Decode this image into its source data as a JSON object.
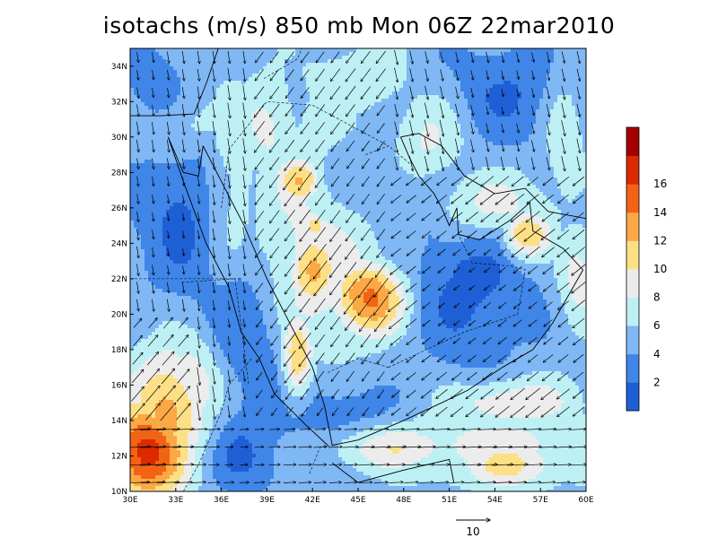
{
  "title": "isotachs (m/s) 850 mb Mon 06Z 22mar2010",
  "map": {
    "lon_range": [
      30,
      60
    ],
    "lat_range": [
      10,
      35
    ],
    "x_ticks": [
      "30E",
      "33E",
      "36E",
      "39E",
      "42E",
      "45E",
      "48E",
      "51E",
      "54E",
      "57E",
      "60E"
    ],
    "y_ticks": [
      "10N",
      "12N",
      "14N",
      "16N",
      "18N",
      "20N",
      "22N",
      "24N",
      "26N",
      "28N",
      "30N",
      "32N",
      "34N"
    ],
    "base_speed": 5,
    "hotspots": [
      {
        "lon": 31.0,
        "lat": 12.2,
        "speed": 17,
        "sx": 2.0,
        "sy": 2.0
      },
      {
        "lon": 32.5,
        "lat": 14.5,
        "speed": 13,
        "sx": 1.8,
        "sy": 2.5
      },
      {
        "lon": 34.0,
        "lat": 16.0,
        "speed": 10,
        "sx": 1.5,
        "sy": 2.0
      },
      {
        "lon": 41.3,
        "lat": 27.5,
        "speed": 13,
        "sx": 1.2,
        "sy": 1.0
      },
      {
        "lon": 42.2,
        "lat": 25.0,
        "speed": 12.5,
        "sx": 0.6,
        "sy": 0.6
      },
      {
        "lon": 42.0,
        "lat": 22.5,
        "speed": 13,
        "sx": 1.2,
        "sy": 1.6
      },
      {
        "lon": 45.8,
        "lat": 21.0,
        "speed": 15,
        "sx": 1.8,
        "sy": 1.6
      },
      {
        "lon": 41.0,
        "lat": 17.5,
        "speed": 13,
        "sx": 0.8,
        "sy": 1.8
      },
      {
        "lon": 43.0,
        "lat": 24.0,
        "speed": 10,
        "sx": 4.0,
        "sy": 5.0
      },
      {
        "lon": 56.0,
        "lat": 24.5,
        "speed": 13,
        "sx": 1.2,
        "sy": 1.0
      },
      {
        "lon": 53.5,
        "lat": 26.0,
        "speed": 10,
        "sx": 3.0,
        "sy": 1.5
      },
      {
        "lon": 55.0,
        "lat": 15.0,
        "speed": 10,
        "sx": 3.0,
        "sy": 1.0
      },
      {
        "lon": 55.0,
        "lat": 11.5,
        "speed": 10.5,
        "sx": 2.5,
        "sy": 1.0
      },
      {
        "lon": 47.0,
        "lat": 12.5,
        "speed": 10,
        "sx": 4.0,
        "sy": 1.0
      },
      {
        "lon": 54.0,
        "lat": 12.5,
        "speed": 9,
        "sx": 6.0,
        "sy": 1.5
      },
      {
        "lon": 36.5,
        "lat": 27.0,
        "speed": 9,
        "sx": 1.5,
        "sy": 4.0
      },
      {
        "lon": 33.0,
        "lat": 30.5,
        "speed": 9,
        "sx": 2.5,
        "sy": 1.5
      },
      {
        "lon": 39.0,
        "lat": 30.5,
        "speed": 9,
        "sx": 1.5,
        "sy": 2.0
      },
      {
        "lon": 49.5,
        "lat": 29.5,
        "speed": 9,
        "sx": 2.0,
        "sy": 2.0
      },
      {
        "lon": 58.5,
        "lat": 30.0,
        "speed": 8,
        "sx": 1.0,
        "sy": 3.0
      },
      {
        "lon": 59.5,
        "lat": 22.0,
        "speed": 9,
        "sx": 1.0,
        "sy": 2.0
      },
      {
        "lon": 45.0,
        "lat": 33.0,
        "speed": 8,
        "sx": 2.5,
        "sy": 1.5
      }
    ],
    "coldspots": [
      {
        "lon": 34.0,
        "lat": 26.0,
        "depth": 4,
        "sx": 2.5,
        "sy": 3.5
      },
      {
        "lon": 31.5,
        "lat": 32.0,
        "depth": 3,
        "sx": 1.5,
        "sy": 2.0
      },
      {
        "lon": 38.0,
        "lat": 19.0,
        "depth": 3.5,
        "sx": 1.8,
        "sy": 3.0
      },
      {
        "lon": 45.0,
        "lat": 27.0,
        "depth": 3.5,
        "sx": 2.5,
        "sy": 2.5
      },
      {
        "lon": 52.0,
        "lat": 22.0,
        "depth": 4,
        "sx": 3.0,
        "sy": 3.5
      },
      {
        "lon": 55.0,
        "lat": 32.5,
        "depth": 3,
        "sx": 3.0,
        "sy": 2.0
      },
      {
        "lon": 43.5,
        "lat": 14.5,
        "depth": 3,
        "sx": 2.5,
        "sy": 2.0
      },
      {
        "lon": 37.5,
        "lat": 12.0,
        "depth": 3,
        "sx": 2.0,
        "sy": 1.5
      }
    ]
  },
  "colorbar": {
    "colors": [
      "#1f5fd6",
      "#3f86e8",
      "#7fb8f5",
      "#bdf0f5",
      "#ececec",
      "#fde085",
      "#fca845",
      "#f26415",
      "#db2a00",
      "#a50000"
    ],
    "labels": [
      "2",
      "4",
      "6",
      "8",
      "10",
      "12",
      "14",
      "16"
    ]
  },
  "reference_vector": {
    "label": "10"
  }
}
